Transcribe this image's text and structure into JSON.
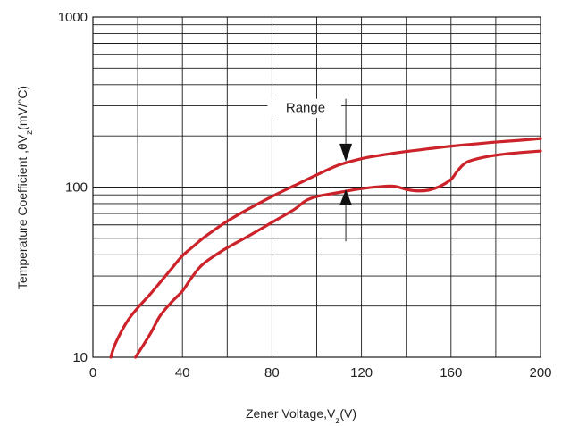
{
  "chart_data": {
    "type": "line",
    "xlabel": {
      "main": "Zener Voltage,V",
      "sub": "z",
      "tail": "(V)"
    },
    "ylabel": {
      "main": "Temperature Coefficient ,θV",
      "sub": "z",
      "tail": "(mV/°C)"
    },
    "xlim": [
      0,
      200
    ],
    "ylim": [
      10,
      1000
    ],
    "yscale": "log",
    "grid": true,
    "x_ticks": [
      "0",
      "40",
      "80",
      "120",
      "160",
      "200"
    ],
    "y_ticks": [
      "10",
      "100",
      "1000"
    ],
    "annotation": "Range",
    "colors": {
      "curve": "#cc2229",
      "grid": "#1a1a1a"
    },
    "series": [
      {
        "x": [
          8,
          10,
          15,
          20,
          25,
          30,
          35,
          40,
          45,
          50,
          60,
          70,
          80,
          90,
          100,
          110,
          120,
          130,
          140,
          150,
          160,
          170,
          180,
          190,
          200
        ],
        "y": [
          10,
          12,
          16,
          19.5,
          23,
          27.5,
          33,
          39.5,
          45,
          51,
          63,
          75,
          88,
          102,
          118,
          135,
          147,
          155,
          162,
          168,
          174,
          179,
          184,
          188,
          193
        ]
      },
      {
        "x": [
          19,
          22,
          26,
          30,
          35,
          40,
          43,
          47,
          50,
          55,
          60,
          70,
          80,
          90,
          95,
          100,
          110,
          120,
          130,
          135,
          140,
          145,
          150,
          155,
          160,
          163,
          167,
          175,
          185,
          200
        ],
        "y": [
          10,
          11.5,
          14,
          17.5,
          21,
          24.5,
          28,
          33,
          36,
          40,
          44,
          52,
          62,
          74,
          83,
          88,
          93,
          98,
          101,
          101,
          97,
          95,
          96,
          101,
          111,
          125,
          140,
          150,
          157,
          163
        ]
      }
    ]
  }
}
